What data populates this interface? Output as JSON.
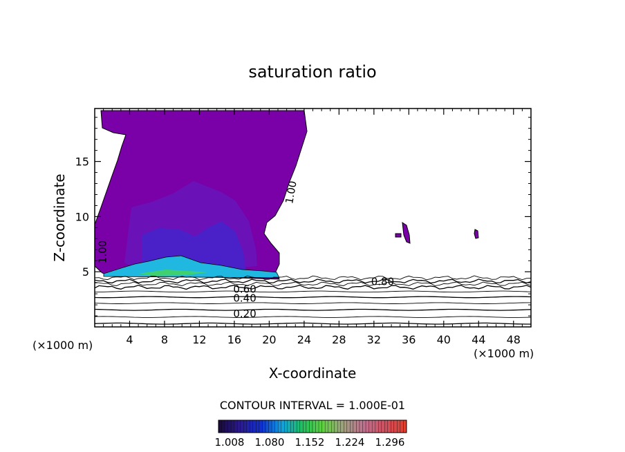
{
  "chart_data": {
    "type": "contour",
    "title": "saturation ratio",
    "xlabel": "X-coordinate",
    "ylabel": "Z-coordinate",
    "x_unit": "(×1000 m)",
    "y_unit": "(×1000 m)",
    "xlim": [
      0,
      50
    ],
    "ylim": [
      0,
      19.8
    ],
    "x_ticks": [
      4,
      8,
      12,
      16,
      20,
      24,
      28,
      32,
      36,
      40,
      44,
      48
    ],
    "y_ticks": [
      5,
      10,
      15
    ],
    "contour_interval_label": "CONTOUR INTERVAL = 1.000E-01",
    "contour_labels": [
      {
        "text": "1.00",
        "x": 22.5,
        "y": 12.2,
        "rotate": -80
      },
      {
        "text": "1.00",
        "x": 0.9,
        "y": 6.8,
        "rotate": -90
      },
      {
        "text": "0.80",
        "x": 33.0,
        "y": 4.1,
        "rotate": 0
      },
      {
        "text": "0.60",
        "x": 17.2,
        "y": 3.4,
        "rotate": 0
      },
      {
        "text": "0.40",
        "x": 17.2,
        "y": 2.6,
        "rotate": 0
      },
      {
        "text": "0.20",
        "x": 17.2,
        "y": 1.2,
        "rotate": 0
      }
    ],
    "contour_lines_z": [
      0.3,
      0.9,
      1.55,
      2.15,
      2.7,
      3.2,
      3.6,
      3.9,
      4.15,
      4.45
    ],
    "colorbar": {
      "tick_labels": [
        "1.008",
        "1.080",
        "1.152",
        "1.224",
        "1.296"
      ],
      "colors": [
        "#1a0a40",
        "#2a1a90",
        "#1030d0",
        "#10a0e0",
        "#20c060",
        "#60d040",
        "#a0a080",
        "#c07090",
        "#d05060",
        "#e04030"
      ]
    },
    "fill_colors": {
      "base": "#7a00a8",
      "mid": "#6a10b8",
      "deep": "#4a20c8",
      "cyan": "#20c0e0",
      "green": "#30d080"
    }
  }
}
